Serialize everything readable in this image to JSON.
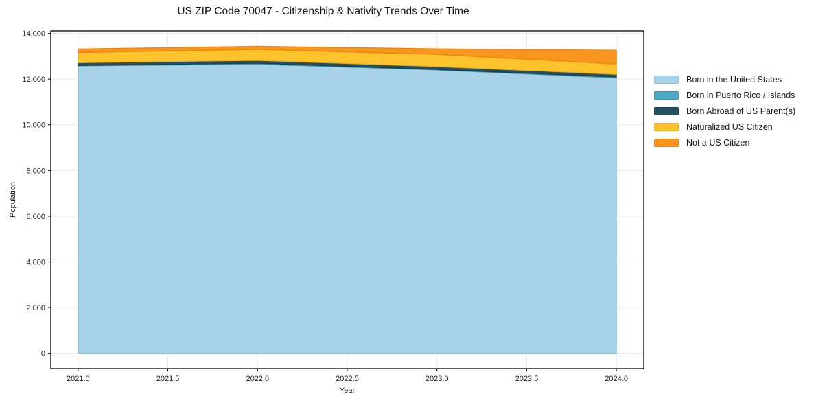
{
  "chart_data": {
    "type": "area",
    "stacked": true,
    "title": "US ZIP Code 70047 - Citizenship & Nativity Trends Over Time",
    "xlabel": "Year",
    "ylabel": "Population",
    "x": [
      2021,
      2022,
      2023,
      2024
    ],
    "x_tick_labels": [
      "2021.0",
      "2021.5",
      "2022.0",
      "2022.5",
      "2023.0",
      "2023.5",
      "2024.0"
    ],
    "y_ticks": [
      0,
      2000,
      4000,
      6000,
      8000,
      10000,
      12000,
      14000
    ],
    "y_tick_labels": [
      "0",
      "2,000",
      "4,000",
      "6,000",
      "8,000",
      "10,000",
      "12,000",
      "14,000"
    ],
    "xlim": [
      2020.8475,
      2024.1525
    ],
    "ylim": [
      -672,
      14107
    ],
    "grid": true,
    "grid_color": "#e9e9e9",
    "legend_position": "right-outside",
    "series": [
      {
        "name": "Born in the United States",
        "color": "#a8d2e7",
        "edge": "#8cc0da",
        "values": [
          12580,
          12650,
          12400,
          12050
        ]
      },
      {
        "name": "Born in Puerto Rico / Islands",
        "color": "#4aa9c5",
        "edge": "#3c95ae",
        "values": [
          15,
          45,
          20,
          45
        ]
      },
      {
        "name": "Born Abroad of US Parent(s)",
        "color": "#24505f",
        "edge": "#1c414e",
        "values": [
          120,
          120,
          130,
          115
        ]
      },
      {
        "name": "Naturalized US Citizen",
        "color": "#fcc32d",
        "edge": "#eeb11a",
        "values": [
          450,
          480,
          530,
          450
        ]
      },
      {
        "name": "Not a US Citizen",
        "color": "#f8961f",
        "edge": "#e7850f",
        "values": [
          150,
          140,
          240,
          600
        ]
      }
    ]
  }
}
